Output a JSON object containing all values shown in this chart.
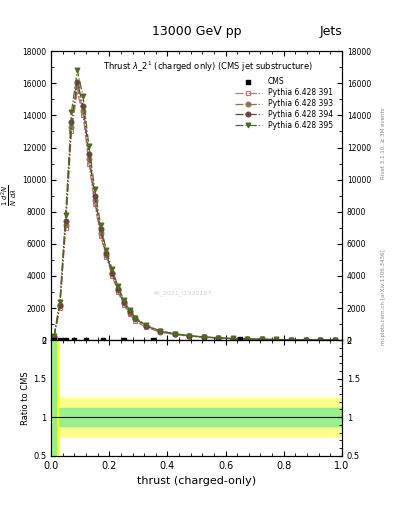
{
  "title_top": "13000 GeV pp",
  "title_right": "Jets",
  "plot_title": "Thrust $\\lambda$_2$^1$ (charged only) (CMS jet substructure)",
  "xlabel": "thrust (charged-only)",
  "ylabel_ratio": "Ratio to CMS",
  "right_label_top": "Rivet 3.1.10, ≥ 3M events",
  "right_label_bottom": "mcplots.cern.ch [arXiv:1306.3436]",
  "cms_label": "CMS",
  "pythia_labels": [
    "Pythia 6.428 391",
    "Pythia 6.428 393",
    "Pythia 6.428 394",
    "Pythia 6.428 395"
  ],
  "pythia_colors": [
    "#c87070",
    "#8B7355",
    "#6B4040",
    "#4B6B20"
  ],
  "pythia_linestyles": [
    "-.",
    "-.",
    "-.",
    "-."
  ],
  "pythia_markers": [
    "s",
    "o",
    "o",
    "v"
  ],
  "main_ylim": [
    0,
    18000
  ],
  "main_yticks": [
    0,
    2000,
    4000,
    6000,
    8000,
    10000,
    12000,
    14000,
    16000,
    18000
  ],
  "ratio_ylim": [
    0.5,
    2.0
  ],
  "ratio_yticks": [
    0.5,
    1.0,
    1.5,
    2.0
  ],
  "xlim": [
    0.0,
    1.0
  ],
  "cms_color": "#000000",
  "background_color": "#ffffff",
  "watermark": "46_2021_I1920187",
  "x_centers": [
    0.01,
    0.03,
    0.05,
    0.07,
    0.09,
    0.11,
    0.13,
    0.15,
    0.17,
    0.19,
    0.21,
    0.23,
    0.25,
    0.27,
    0.29,
    0.325,
    0.375,
    0.425,
    0.475,
    0.525,
    0.575,
    0.625,
    0.675,
    0.725,
    0.775,
    0.825,
    0.875,
    0.925,
    0.975
  ],
  "y_p391": [
    200,
    2000,
    7000,
    13000,
    15500,
    14000,
    11000,
    8500,
    6500,
    5200,
    4000,
    3000,
    2200,
    1600,
    1200,
    800,
    500,
    350,
    250,
    180,
    130,
    95,
    70,
    50,
    35,
    25,
    15,
    10,
    5
  ],
  "y_p393": [
    200,
    2100,
    7200,
    13300,
    15800,
    14300,
    11300,
    8700,
    6700,
    5300,
    4100,
    3100,
    2300,
    1700,
    1300,
    850,
    520,
    360,
    260,
    185,
    135,
    98,
    72,
    52,
    37,
    26,
    16,
    11,
    6
  ],
  "y_p394": [
    200,
    2200,
    7400,
    13600,
    16100,
    14600,
    11600,
    9000,
    6900,
    5400,
    4200,
    3200,
    2400,
    1800,
    1350,
    900,
    550,
    380,
    270,
    190,
    140,
    100,
    74,
    54,
    38,
    27,
    17,
    11,
    6
  ],
  "y_p395": [
    250,
    2400,
    7800,
    14200,
    16800,
    15200,
    12100,
    9400,
    7200,
    5600,
    4400,
    3350,
    2500,
    1850,
    1400,
    940,
    580,
    400,
    285,
    200,
    147,
    105,
    78,
    57,
    40,
    29,
    18,
    12,
    7
  ],
  "cms_x": [
    0.01,
    0.03,
    0.05,
    0.08,
    0.12,
    0.18,
    0.25,
    0.35,
    0.65
  ],
  "cms_y": [
    20,
    10,
    10,
    10,
    8,
    8,
    8,
    8,
    50
  ]
}
